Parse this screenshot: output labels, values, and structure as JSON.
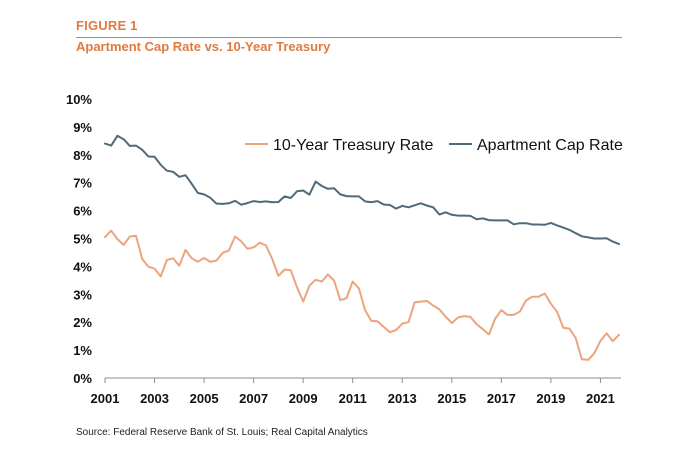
{
  "figure": {
    "label": "FIGURE 1",
    "title": "Apartment Cap Rate vs. 10-Year Treasury",
    "source": "Source: Federal Reserve Bank of St. Louis; Real Capital Analytics"
  },
  "colors": {
    "accent": "#E07A3F",
    "treasury": "#EBA57E",
    "cap_rate": "#4F6B7A",
    "axis": "#8C8C8C",
    "text": "#111111"
  },
  "chart_data": {
    "type": "line",
    "title": "Apartment Cap Rate vs. 10-Year Treasury",
    "xlabel": "",
    "ylabel": "",
    "xlim": [
      2001.0,
      2021.83
    ],
    "ylim": [
      0,
      10
    ],
    "grid": false,
    "legend_position": "top-right",
    "x_ticks": [
      {
        "value": 2001,
        "label": "2001"
      },
      {
        "value": 2003,
        "label": "2003"
      },
      {
        "value": 2005,
        "label": "2005"
      },
      {
        "value": 2007,
        "label": "2007"
      },
      {
        "value": 2009,
        "label": "2009"
      },
      {
        "value": 2011,
        "label": "2011"
      },
      {
        "value": 2013,
        "label": "2013"
      },
      {
        "value": 2015,
        "label": "2015"
      },
      {
        "value": 2017,
        "label": "2017"
      },
      {
        "value": 2019,
        "label": "2019"
      },
      {
        "value": 2021,
        "label": "2021"
      }
    ],
    "y_ticks": [
      {
        "value": 0,
        "label": "0%"
      },
      {
        "value": 1,
        "label": "1%"
      },
      {
        "value": 2,
        "label": "2%"
      },
      {
        "value": 3,
        "label": "3%"
      },
      {
        "value": 4,
        "label": "4%"
      },
      {
        "value": 5,
        "label": "5%"
      },
      {
        "value": 6,
        "label": "6%"
      },
      {
        "value": 7,
        "label": "7%"
      },
      {
        "value": 8,
        "label": "8%"
      },
      {
        "value": 9,
        "label": "9%"
      },
      {
        "value": 10,
        "label": "10%"
      }
    ],
    "series": [
      {
        "name": "10-Year Treasury Rate",
        "color": "#EBA57E",
        "x": [
          2001.0,
          2001.25,
          2001.5,
          2001.75,
          2002.0,
          2002.25,
          2002.5,
          2002.75,
          2003.0,
          2003.25,
          2003.5,
          2003.75,
          2004.0,
          2004.25,
          2004.5,
          2004.75,
          2005.0,
          2005.25,
          2005.5,
          2005.75,
          2006.0,
          2006.25,
          2006.5,
          2006.75,
          2007.0,
          2007.25,
          2007.5,
          2007.75,
          2008.0,
          2008.25,
          2008.5,
          2008.75,
          2009.0,
          2009.25,
          2009.5,
          2009.75,
          2010.0,
          2010.25,
          2010.5,
          2010.75,
          2011.0,
          2011.25,
          2011.5,
          2011.75,
          2012.0,
          2012.25,
          2012.5,
          2012.75,
          2013.0,
          2013.25,
          2013.5,
          2013.75,
          2014.0,
          2014.25,
          2014.5,
          2014.75,
          2015.0,
          2015.25,
          2015.5,
          2015.75,
          2016.0,
          2016.25,
          2016.5,
          2016.75,
          2017.0,
          2017.25,
          2017.5,
          2017.75,
          2018.0,
          2018.25,
          2018.5,
          2018.75,
          2019.0,
          2019.25,
          2019.5,
          2019.75,
          2020.0,
          2020.25,
          2020.5,
          2020.75,
          2021.0,
          2021.25,
          2021.5,
          2021.75
        ],
        "values": [
          5.05,
          5.28,
          4.98,
          4.77,
          5.07,
          5.1,
          4.27,
          3.99,
          3.92,
          3.64,
          4.23,
          4.29,
          4.02,
          4.59,
          4.29,
          4.17,
          4.3,
          4.16,
          4.21,
          4.49,
          4.57,
          5.07,
          4.9,
          4.63,
          4.68,
          4.85,
          4.75,
          4.27,
          3.66,
          3.89,
          3.86,
          3.25,
          2.74,
          3.31,
          3.52,
          3.46,
          3.71,
          3.49,
          2.79,
          2.86,
          3.46,
          3.21,
          2.43,
          2.05,
          2.03,
          1.83,
          1.64,
          1.72,
          1.95,
          2.0,
          2.71,
          2.74,
          2.76,
          2.6,
          2.46,
          2.2,
          1.97,
          2.17,
          2.22,
          2.19,
          1.93,
          1.75,
          1.56,
          2.13,
          2.43,
          2.26,
          2.26,
          2.38,
          2.78,
          2.91,
          2.91,
          3.03,
          2.66,
          2.37,
          1.8,
          1.77,
          1.43,
          0.67,
          0.65,
          0.88,
          1.33,
          1.6,
          1.32,
          1.55
        ]
      },
      {
        "name": "Apartment Cap Rate",
        "color": "#4F6B7A",
        "x": [
          2001.0,
          2001.25,
          2001.5,
          2001.75,
          2002.0,
          2002.25,
          2002.5,
          2002.75,
          2003.0,
          2003.25,
          2003.5,
          2003.75,
          2004.0,
          2004.25,
          2004.5,
          2004.75,
          2005.0,
          2005.25,
          2005.5,
          2005.75,
          2006.0,
          2006.25,
          2006.5,
          2006.75,
          2007.0,
          2007.25,
          2007.5,
          2007.75,
          2008.0,
          2008.25,
          2008.5,
          2008.75,
          2009.0,
          2009.25,
          2009.5,
          2009.75,
          2010.0,
          2010.25,
          2010.5,
          2010.75,
          2011.0,
          2011.25,
          2011.5,
          2011.75,
          2012.0,
          2012.25,
          2012.5,
          2012.75,
          2013.0,
          2013.25,
          2013.5,
          2013.75,
          2014.0,
          2014.25,
          2014.5,
          2014.75,
          2015.0,
          2015.25,
          2015.5,
          2015.75,
          2016.0,
          2016.25,
          2016.5,
          2016.75,
          2017.0,
          2017.25,
          2017.5,
          2017.75,
          2018.0,
          2018.25,
          2018.5,
          2018.75,
          2019.0,
          2019.25,
          2019.5,
          2019.75,
          2020.0,
          2020.25,
          2020.5,
          2020.75,
          2021.0,
          2021.25,
          2021.5,
          2021.75
        ],
        "values": [
          8.4,
          8.33,
          8.68,
          8.56,
          8.32,
          8.33,
          8.18,
          7.94,
          7.93,
          7.64,
          7.43,
          7.39,
          7.21,
          7.27,
          6.96,
          6.63,
          6.58,
          6.46,
          6.25,
          6.24,
          6.26,
          6.35,
          6.21,
          6.27,
          6.34,
          6.31,
          6.33,
          6.3,
          6.31,
          6.51,
          6.45,
          6.69,
          6.72,
          6.57,
          7.04,
          6.88,
          6.78,
          6.8,
          6.58,
          6.52,
          6.51,
          6.51,
          6.33,
          6.3,
          6.34,
          6.22,
          6.2,
          6.07,
          6.17,
          6.12,
          6.19,
          6.26,
          6.18,
          6.12,
          5.86,
          5.94,
          5.85,
          5.82,
          5.82,
          5.81,
          5.69,
          5.72,
          5.66,
          5.65,
          5.65,
          5.65,
          5.51,
          5.55,
          5.55,
          5.5,
          5.5,
          5.49,
          5.56,
          5.47,
          5.39,
          5.31,
          5.19,
          5.08,
          5.04,
          5.0,
          5.0,
          5.01,
          4.89,
          4.8
        ]
      }
    ]
  }
}
